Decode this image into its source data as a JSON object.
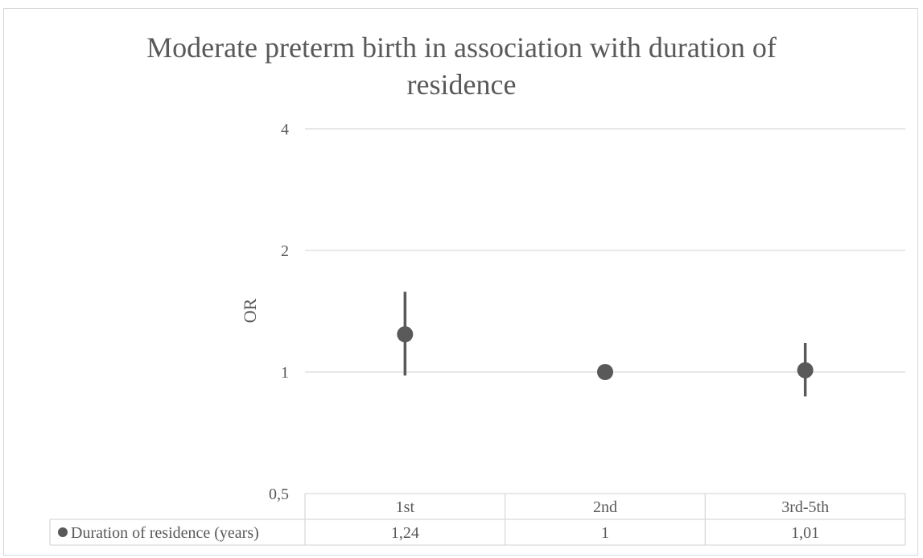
{
  "chart_data": {
    "type": "scatter",
    "title": "Moderate preterm birth in association with duration of residence",
    "ylabel": "OR",
    "yscale": "log2",
    "ylim": [
      0.5,
      4
    ],
    "yticks": [
      "0,5",
      "1",
      "2",
      "4"
    ],
    "ytick_values": [
      0.5,
      1,
      2,
      4
    ],
    "categories": [
      "1st",
      "2nd",
      "3rd-5th"
    ],
    "series": [
      {
        "name": "Duration of residence (years)",
        "values": [
          1.24,
          1,
          1.01
        ],
        "value_labels": [
          "1,24",
          "1",
          "1,01"
        ],
        "lower": [
          0.98,
          null,
          0.87
        ],
        "upper": [
          1.58,
          null,
          1.18
        ],
        "color": "#595959"
      }
    ],
    "grid": true,
    "legend": "data-table"
  }
}
